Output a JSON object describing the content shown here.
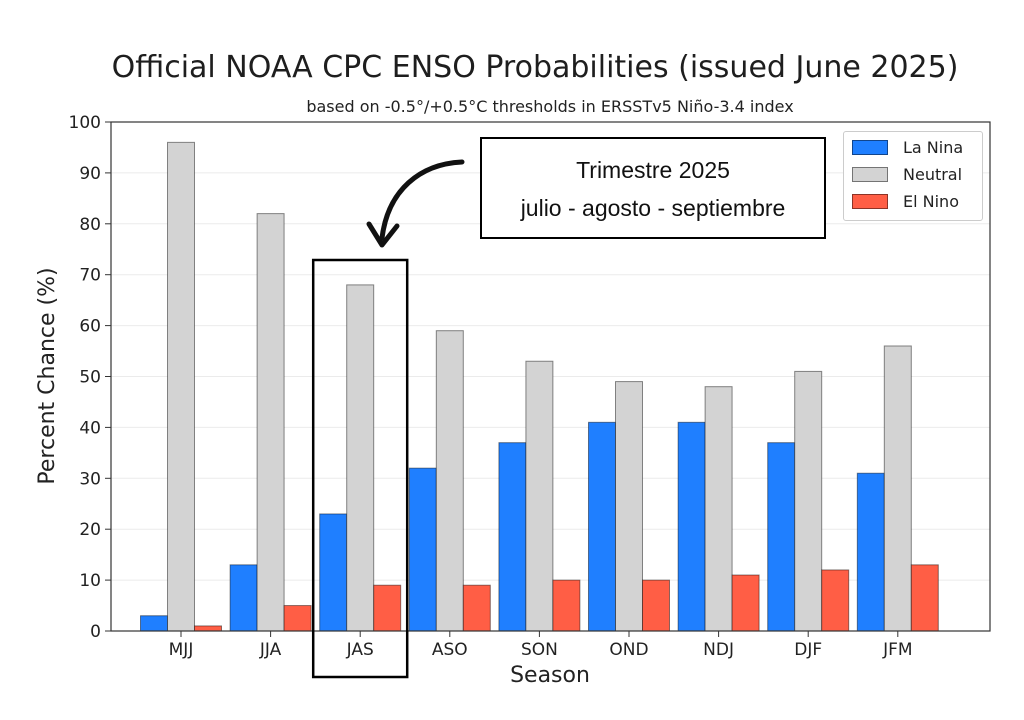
{
  "chart_data": {
    "type": "bar",
    "title": "Official NOAA CPC ENSO Probabilities (issued June 2025)",
    "subtitle": "based on -0.5°/+0.5°C thresholds in ERSSTv5 Niño-3.4 index",
    "xlabel": "Season",
    "ylabel": "Percent Chance (%)",
    "ylim": [
      0,
      100
    ],
    "yticks": [
      "0",
      "10",
      "20",
      "30",
      "40",
      "50",
      "60",
      "70",
      "80",
      "90",
      "100"
    ],
    "grid": true,
    "legend_position": "top-right",
    "categories": [
      "MJJ",
      "JJA",
      "JAS",
      "ASO",
      "SON",
      "OND",
      "NDJ",
      "DJF",
      "JFM"
    ],
    "series": [
      {
        "name": "La Nina",
        "color": "#1f7fff",
        "values": [
          3,
          13,
          23,
          32,
          37,
          41,
          41,
          37,
          31
        ]
      },
      {
        "name": "Neutral",
        "color": "#d3d3d3",
        "values": [
          96,
          82,
          68,
          59,
          53,
          49,
          48,
          51,
          56
        ]
      },
      {
        "name": "El Nino",
        "color": "#ff5e45",
        "values": [
          1,
          5,
          9,
          9,
          10,
          10,
          11,
          12,
          13
        ]
      }
    ],
    "highlight_category": "JAS"
  },
  "annotation": {
    "line1": "Trimestre 2025",
    "line2": "julio - agosto - septiembre"
  }
}
